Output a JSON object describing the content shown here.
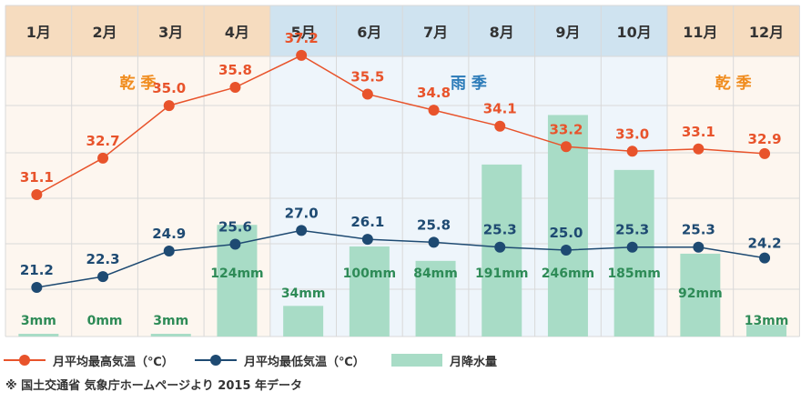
{
  "chart_data": {
    "type": "line+bar",
    "months": [
      "1月",
      "2月",
      "3月",
      "4月",
      "5月",
      "6月",
      "7月",
      "8月",
      "9月",
      "10月",
      "11月",
      "12月"
    ],
    "seasons": [
      {
        "label": "乾 季",
        "from": 1,
        "to": 4
      },
      {
        "label": "雨 季",
        "from": 5,
        "to": 10
      },
      {
        "label": "乾 季",
        "from": 11,
        "to": 12
      }
    ],
    "series": [
      {
        "name": "月平均最高気温（℃）",
        "kind": "line",
        "color": "#e8532b",
        "values": [
          31.1,
          32.7,
          35.0,
          35.8,
          37.2,
          35.5,
          34.8,
          34.1,
          33.2,
          33.0,
          33.1,
          32.9
        ],
        "labels": [
          "31.1",
          "32.7",
          "35.0",
          "35.8",
          "37.2",
          "35.5",
          "34.8",
          "34.1",
          "33.2",
          "33.0",
          "33.1",
          "32.9"
        ]
      },
      {
        "name": "月平均最低気温（℃）",
        "kind": "line",
        "color": "#1e4a72",
        "values": [
          21.2,
          22.3,
          24.9,
          25.6,
          27.0,
          26.1,
          25.8,
          25.3,
          25.0,
          25.3,
          25.3,
          24.2
        ],
        "labels": [
          "21.2",
          "22.3",
          "24.9",
          "25.6",
          "27.0",
          "26.1",
          "25.8",
          "25.3",
          "25.0",
          "25.3",
          "25.3",
          "24.2"
        ]
      },
      {
        "name": "月降水量",
        "kind": "bar",
        "color": "#a8dcc6",
        "values": [
          3,
          0,
          3,
          124,
          34,
          100,
          84,
          191,
          246,
          185,
          92,
          13
        ],
        "labels": [
          "3mm",
          "0mm",
          "3mm",
          "124mm",
          "34mm",
          "100mm",
          "84mm",
          "191mm",
          "246mm",
          "185mm",
          "92mm",
          "13mm"
        ]
      }
    ],
    "colors": {
      "dry_header": "#f6dcbf",
      "rain_header": "#cfe3f0",
      "dry_body": "#fdf6ef",
      "rain_body": "#eef5fb",
      "grid": "#d9d9d9",
      "season_dry_text": "#f08c1e",
      "season_rain_text": "#2a7ab8",
      "rain_label_text": "#2e8b57"
    }
  },
  "source_note": "※ 国土交通省 気象庁ホームページより 2015 年データ"
}
